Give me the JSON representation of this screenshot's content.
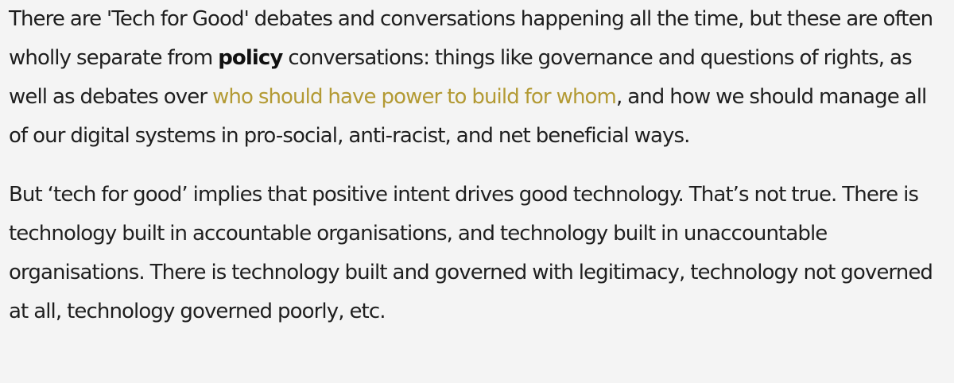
{
  "paragraphs": [
    {
      "seg0": "There are 'Tech for Good' debates and conversations happening all the time, but these are often wholly separate from ",
      "bold": "policy",
      "seg1": " conversations: things like governance and questions of rights, as well as debates over ",
      "link": "who should have power to build for whom",
      "seg2": ", and how we should manage all of our digital systems in pro-social, anti-racist, and net beneficial ways."
    },
    {
      "text": "But ‘tech for good’ implies that positive intent drives good technology. That’s not true. There is technology built in accountable organisations, and technology built in unaccountable organisations. There is technology built and governed with legitimacy, technology not governed at all, technology governed poorly, etc."
    }
  ],
  "colors": {
    "background": "#f4f4f4",
    "text": "#1f1f1f",
    "link": "#b39a34"
  }
}
